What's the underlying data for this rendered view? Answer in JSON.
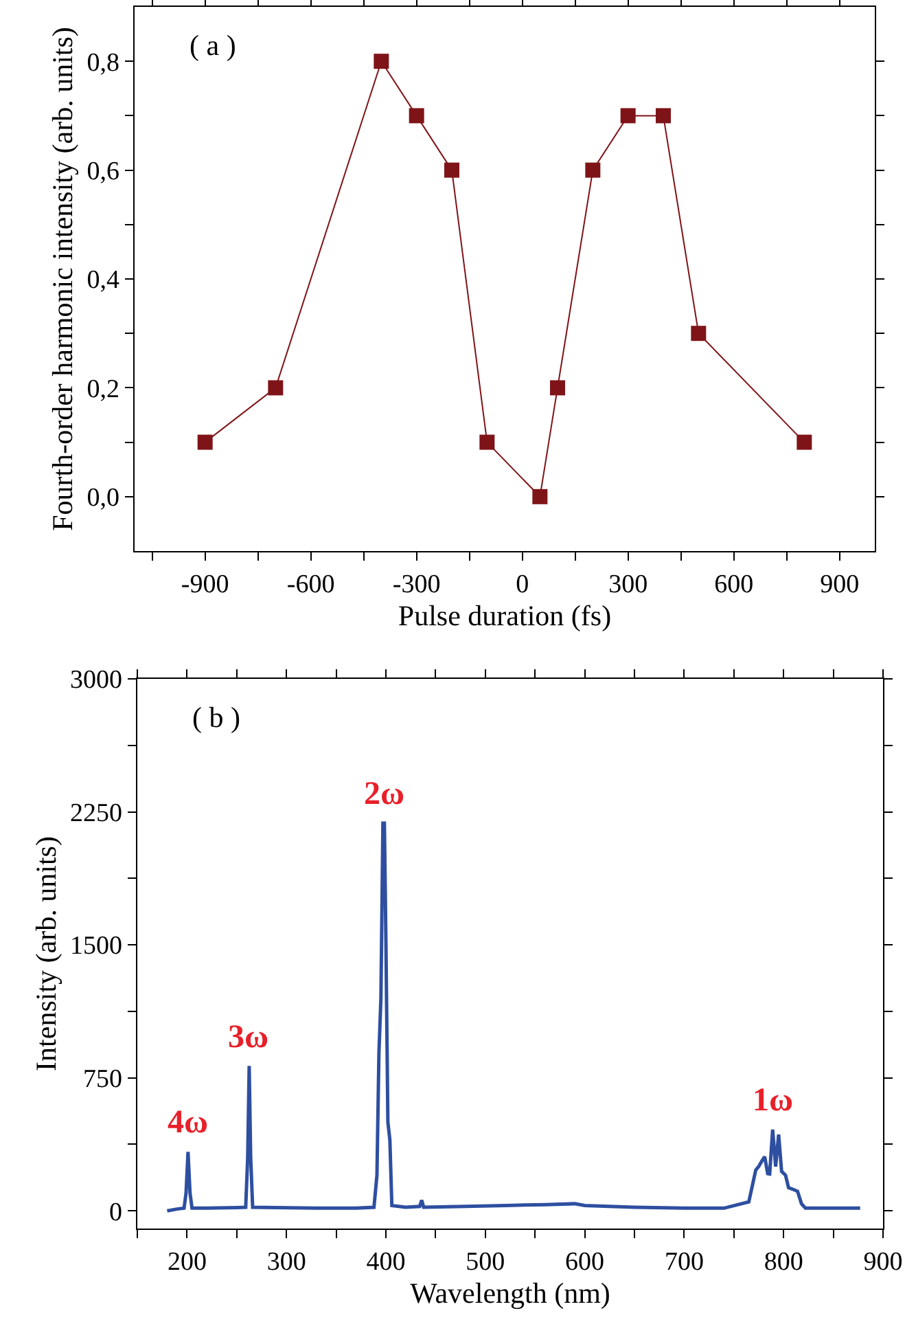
{
  "chart_data": [
    {
      "type": "line",
      "xlabel": "Pulse duration (fs)",
      "ylabel": "Fourth-order harmonic intensity (arb. units)",
      "annotations": [
        "( a )"
      ],
      "x": [
        -900,
        -700,
        -400,
        -300,
        -200,
        -100,
        50,
        100,
        200,
        300,
        400,
        500,
        800
      ],
      "series": [
        {
          "color": "#7f1418",
          "values": [
            0.1,
            0.2,
            0.8,
            0.7,
            0.6,
            0.1,
            0.0,
            0.2,
            0.6,
            0.7,
            0.7,
            0.3,
            0.1
          ]
        }
      ],
      "marker": "square",
      "line_style": "solid",
      "grid": false,
      "xlim": [
        -1100,
        1000
      ],
      "xticks": [
        {
          "value": -1050,
          "label": null
        },
        -900,
        {
          "value": -750,
          "label": null
        },
        -600,
        {
          "value": -450,
          "label": null
        },
        -300,
        {
          "value": -150,
          "label": null
        },
        0,
        {
          "value": 150,
          "label": null
        },
        300,
        {
          "value": 450,
          "label": null
        },
        600,
        {
          "value": 750,
          "label": null
        },
        900
      ],
      "ylim": [
        -0.1,
        0.9
      ],
      "yticks": [
        {
          "value": 0.0,
          "label": "0,0"
        },
        {
          "value": 0.1,
          "label": null
        },
        {
          "value": 0.2,
          "label": "0,2"
        },
        {
          "value": 0.3,
          "label": null
        },
        {
          "value": 0.4,
          "label": "0,4"
        },
        {
          "value": 0.5,
          "label": null
        },
        {
          "value": 0.6,
          "label": "0,6"
        },
        {
          "value": 0.7,
          "label": null
        },
        {
          "value": 0.8,
          "label": "0,8"
        }
      ]
    },
    {
      "type": "line",
      "xlabel": "Wavelength (nm)",
      "ylabel": "Intensity (arb. units)",
      "annotations": [
        "( b )",
        {
          "text": "4ω",
          "x": 201,
          "y": 333
        },
        {
          "text": "3ω",
          "x": 262.5,
          "y": 817
        },
        {
          "text": "2ω",
          "x": 398,
          "y": 2186
        },
        {
          "text": "1ω",
          "x": 789,
          "y": 458
        }
      ],
      "x": [
        180,
        190,
        197,
        199,
        201,
        203,
        205,
        220,
        250,
        259,
        261,
        262.5,
        264,
        266,
        290,
        330,
        370,
        388,
        391,
        393,
        395,
        397,
        398.5,
        400,
        402,
        404,
        406,
        420,
        434,
        436,
        438,
        480,
        520,
        560,
        590,
        600,
        650,
        700,
        740,
        765,
        772,
        775,
        778,
        781,
        784,
        786,
        789,
        792,
        795,
        798,
        802,
        805,
        810,
        814,
        818,
        822,
        850,
        877
      ],
      "series": [
        {
          "color": "#2e4fa0",
          "values": [
            0,
            10,
            15,
            100,
            333,
            100,
            15,
            15,
            18,
            20,
            300,
            817,
            300,
            20,
            18,
            15,
            15,
            20,
            200,
            890,
            1200,
            2186,
            2186,
            1528,
            500,
            400,
            30,
            20,
            25,
            60,
            20,
            25,
            30,
            35,
            40,
            30,
            20,
            15,
            15,
            50,
            230,
            250,
            280,
            305,
            210,
            208,
            458,
            250,
            430,
            222,
            200,
            130,
            120,
            110,
            40,
            15,
            15,
            15
          ]
        }
      ],
      "marker": "none",
      "line_style": "solid",
      "grid": false,
      "xlim": [
        150,
        900
      ],
      "xticks": [
        {
          "value": 150,
          "label": null
        },
        200,
        {
          "value": 250,
          "label": null
        },
        300,
        {
          "value": 350,
          "label": null
        },
        400,
        {
          "value": 450,
          "label": null
        },
        500,
        {
          "value": 550,
          "label": null
        },
        600,
        {
          "value": 650,
          "label": null
        },
        700,
        {
          "value": 750,
          "label": null
        },
        800,
        {
          "value": 850,
          "label": null
        },
        900
      ],
      "ylim": [
        -100,
        3000
      ],
      "yticks": [
        0,
        {
          "value": 375,
          "label": null
        },
        750,
        {
          "value": 1125,
          "label": null
        },
        1500,
        {
          "value": 1875,
          "label": null
        },
        2250,
        {
          "value": 2625,
          "label": null
        },
        3000
      ]
    }
  ]
}
